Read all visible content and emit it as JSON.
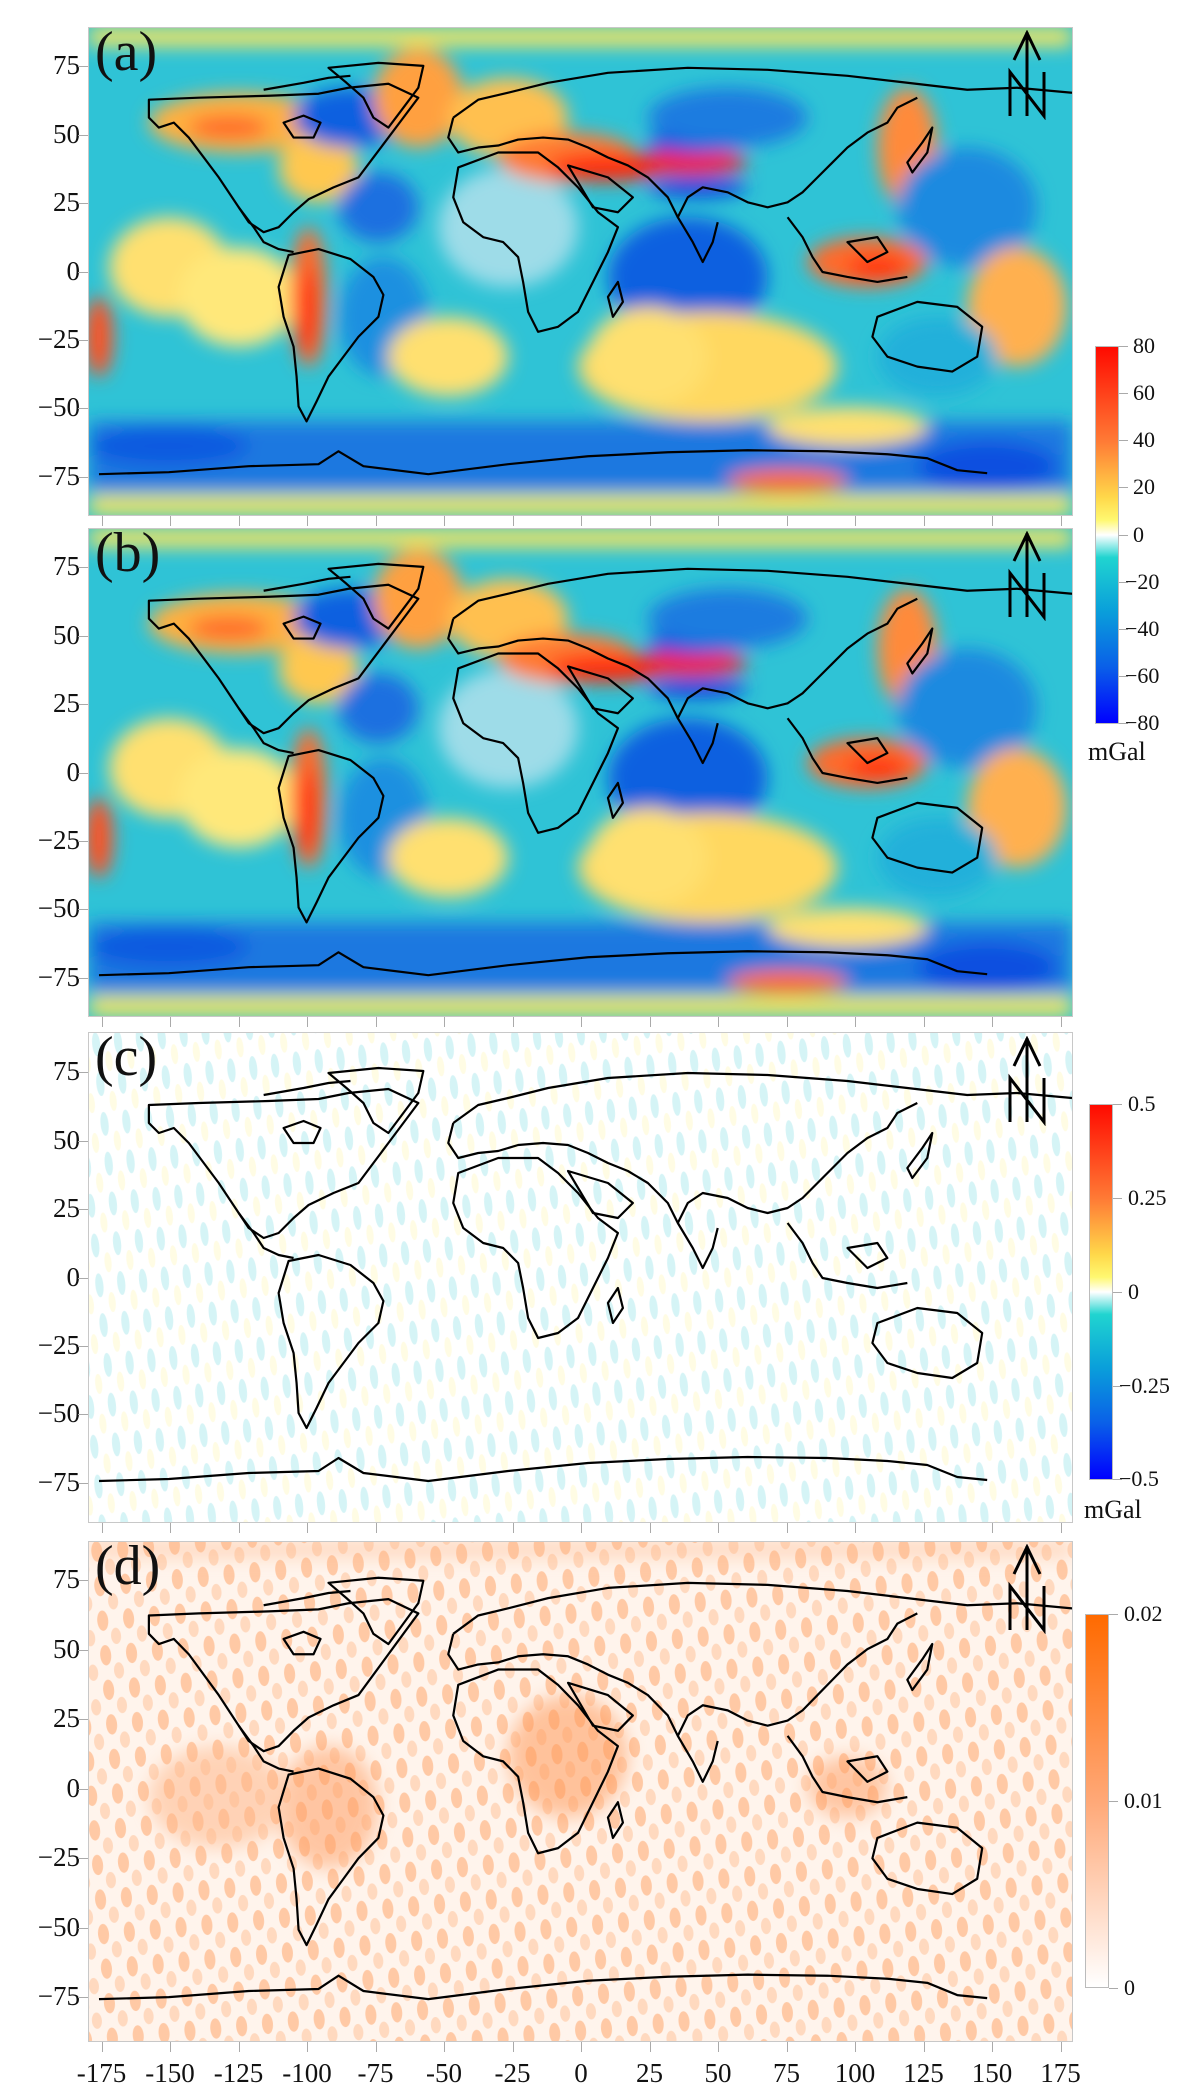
{
  "chart_data": [
    {
      "type": "heatmap",
      "panel": "(a)",
      "title": "(a)",
      "xlabel": "",
      "ylabel": "",
      "x_ticks": [
        -175,
        -150,
        -125,
        -100,
        -75,
        -50,
        -25,
        0,
        25,
        50,
        75,
        100,
        125,
        150,
        175
      ],
      "y_ticks": [
        75,
        50,
        25,
        0,
        -25,
        -50,
        -75
      ],
      "xlim": [
        -180,
        180
      ],
      "ylim": [
        -90,
        90
      ],
      "colorbar": {
        "ticks": [
          80,
          60,
          40,
          20,
          0,
          -20,
          -40,
          -60,
          -80
        ],
        "range": [
          -80,
          80
        ],
        "unit": "mGal",
        "colormap": "blue-cyan-white-yellow-red"
      },
      "description": "Global gravity anomaly field with coastlines; strong positive anomalies along Andes, Himalaya/Tibet, Indonesia, Japan; negative over Hudson Bay, Indian Ocean, Antarctic margin"
    },
    {
      "type": "heatmap",
      "panel": "(b)",
      "title": "(b)",
      "x_ticks": [
        -175,
        -150,
        -125,
        -100,
        -75,
        -50,
        -25,
        0,
        25,
        50,
        75,
        100,
        125,
        150,
        175
      ],
      "y_ticks": [
        75,
        50,
        25,
        0,
        -25,
        -50,
        -75
      ],
      "xlim": [
        -180,
        180
      ],
      "ylim": [
        -90,
        90
      ],
      "colorbar": {
        "ticks": [
          80,
          60,
          40,
          20,
          0,
          -20,
          -40,
          -60,
          -80
        ],
        "range": [
          -80,
          80
        ],
        "unit": "mGal",
        "colormap": "blue-cyan-white-yellow-red",
        "shared_with": "(a)"
      },
      "description": "Reconstructed gravity anomaly field nearly identical to (a)"
    },
    {
      "type": "heatmap",
      "panel": "(c)",
      "title": "(c)",
      "x_ticks": [
        -175,
        -150,
        -125,
        -100,
        -75,
        -50,
        -25,
        0,
        25,
        50,
        75,
        100,
        125,
        150,
        175
      ],
      "y_ticks": [
        75,
        50,
        25,
        0,
        -25,
        -50,
        -75
      ],
      "xlim": [
        -180,
        180
      ],
      "ylim": [
        -90,
        90
      ],
      "colorbar": {
        "ticks": [
          0.5,
          0.25,
          0,
          -0.25,
          -0.5
        ],
        "range": [
          -0.5,
          0.5
        ],
        "unit": "mGal",
        "colormap": "blue-cyan-white-yellow-red"
      },
      "description": "Difference field, values mostly near 0 with faint cyan/yellow north-south striping"
    },
    {
      "type": "heatmap",
      "panel": "(d)",
      "title": "(d)",
      "x_ticks": [
        -175,
        -150,
        -125,
        -100,
        -75,
        -50,
        -25,
        0,
        25,
        50,
        75,
        100,
        125,
        150,
        175
      ],
      "y_ticks": [
        75,
        50,
        25,
        0,
        -25,
        -50,
        -75
      ],
      "xlim": [
        -180,
        180
      ],
      "ylim": [
        -90,
        90
      ],
      "colorbar": {
        "ticks": [
          0.02,
          0.01,
          0
        ],
        "range": [
          0,
          0.02
        ],
        "unit": "",
        "colormap": "white-orange"
      },
      "description": "Error/std field, orange blobby pattern with maxima near equatorial Africa and South America"
    }
  ],
  "panels": [
    {
      "label": "(a)"
    },
    {
      "label": "(b)"
    },
    {
      "label": "(c)"
    },
    {
      "label": "(d)"
    }
  ],
  "axes": {
    "y_ticks": [
      "75",
      "50",
      "25",
      "0",
      "−25",
      "−50",
      "−75"
    ],
    "x_ticks": [
      "-175",
      "-150",
      "-125",
      "-100",
      "-75",
      "-50",
      "-25",
      "0",
      "25",
      "50",
      "75",
      "100",
      "125",
      "150",
      "175"
    ]
  },
  "colorbars": [
    {
      "ticks": [
        "80",
        "60",
        "40",
        "20",
        "0",
        "−20",
        "−40",
        "−60",
        "−80"
      ],
      "unit": "mGal"
    },
    {
      "ticks": [
        "0.5",
        "0.25",
        "0",
        "−0.25",
        "−0.5"
      ],
      "unit": "mGal"
    },
    {
      "ticks": [
        "0.02",
        "0.01",
        "0"
      ]
    }
  ],
  "north_arrow": {
    "letter": "N"
  },
  "colors": {
    "red": "#ff1a0a",
    "orange": "#ff8c3a",
    "yellow": "#ffef5a",
    "white": "#ffffff",
    "cyan": "#13cfd6",
    "blue": "#0f6fe0",
    "navy": "#0000ff",
    "err_orange": "#ff6a00"
  }
}
